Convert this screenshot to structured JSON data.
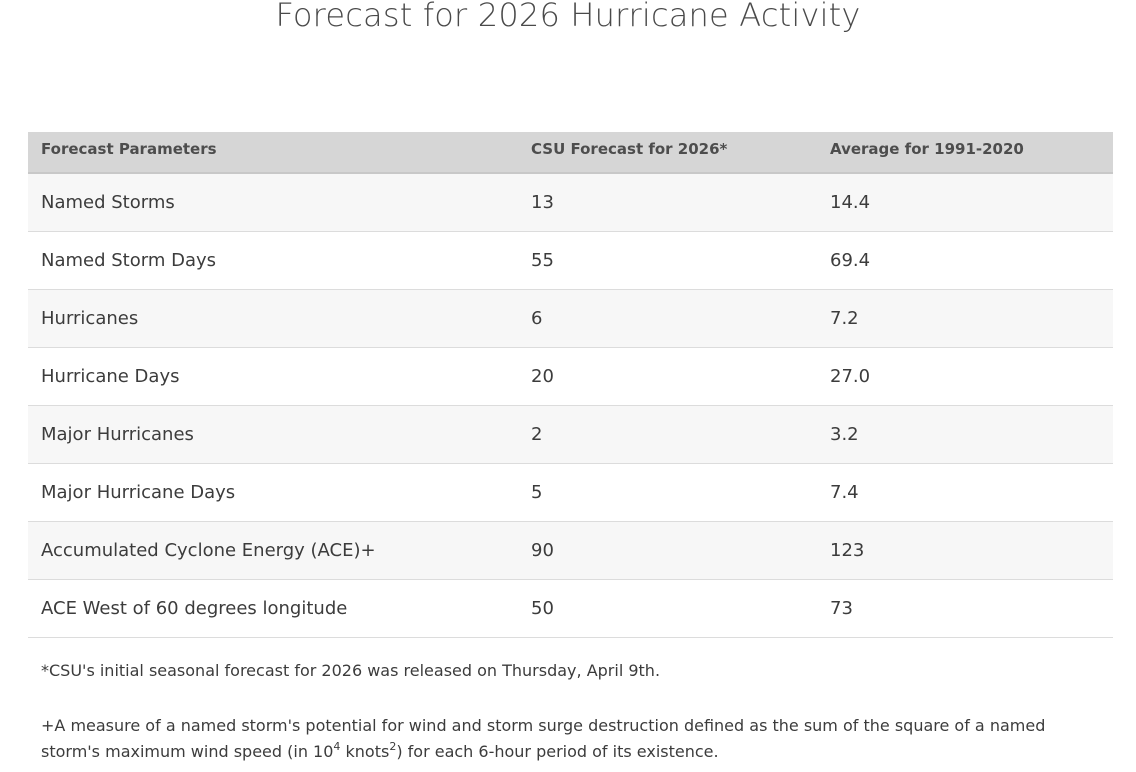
{
  "page": {
    "title": "Forecast for 2026 Hurricane Activity"
  },
  "table": {
    "headers": [
      "Forecast Parameters",
      "CSU Forecast for 2026*",
      "Average for 1991-2020"
    ],
    "rows": [
      {
        "parameter": "Named Storms",
        "forecast": "13",
        "average": "14.4"
      },
      {
        "parameter": "Named Storm Days",
        "forecast": "55",
        "average": "69.4"
      },
      {
        "parameter": "Hurricanes",
        "forecast": "6",
        "average": "7.2"
      },
      {
        "parameter": "Hurricane Days",
        "forecast": "20",
        "average": "27.0"
      },
      {
        "parameter": "Major Hurricanes",
        "forecast": "2",
        "average": "3.2"
      },
      {
        "parameter": "Major Hurricane Days",
        "forecast": "5",
        "average": "7.4"
      },
      {
        "parameter": "Accumulated Cyclone Energy (ACE)+",
        "forecast": "90",
        "average": "123"
      },
      {
        "parameter": "ACE West of 60 degrees longitude",
        "forecast": "50",
        "average": "73"
      }
    ]
  },
  "footnotes": {
    "release_note": "*CSU's initial seasonal forecast for 2026 was released on Thursday, April 9th.",
    "ace_definition": {
      "part1": "+A measure of a named storm's potential for wind and storm surge destruction defined as the sum of the square of a named storm's maximum wind speed (in 10",
      "exp1": "4",
      "part2": " knots",
      "exp2": "2",
      "part3": ") for each 6-hour period of its existence."
    }
  }
}
